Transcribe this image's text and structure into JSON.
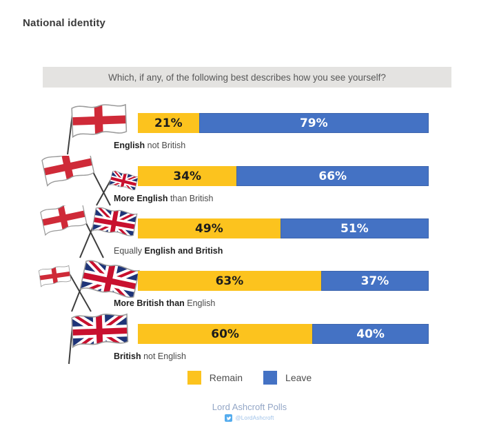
{
  "page": {
    "title": "National identity"
  },
  "question": {
    "text": "Which, if any, of the following best describes how you see yourself?"
  },
  "chart_data": {
    "type": "bar",
    "orientation": "horizontal-stacked",
    "title": "Which, if any, of the following best describes how you see yourself?",
    "xlim": [
      0,
      100
    ],
    "series_names": [
      "Remain",
      "Leave"
    ],
    "colors": {
      "remain": "#FCC31E",
      "leave": "#4472C4"
    },
    "rows": [
      {
        "icon": "england-flag",
        "label_pre": "",
        "label_bold": "English",
        "label_post": " not British",
        "remain_pct": 21,
        "leave_pct": 79,
        "remain_label": "21%",
        "leave_label": "79%"
      },
      {
        "icon": "large-england-flag-with-small-uk-flag",
        "label_pre": "",
        "label_bold": "More English",
        "label_post": " than British",
        "remain_pct": 34,
        "leave_pct": 66,
        "remain_label": "34%",
        "leave_label": "66%"
      },
      {
        "icon": "england-flag-and-uk-flag-crossed",
        "label_pre": "Equally ",
        "label_bold": "English and British",
        "label_post": "",
        "remain_pct": 49,
        "leave_pct": 51,
        "remain_label": "49%",
        "leave_label": "51%"
      },
      {
        "icon": "small-england-flag-with-large-uk-flag",
        "label_pre": "",
        "label_bold": "More British than",
        "label_post": " English",
        "remain_pct": 63,
        "leave_pct": 37,
        "remain_label": "63%",
        "leave_label": "37%"
      },
      {
        "icon": "uk-flag",
        "label_pre": "",
        "label_bold": "British",
        "label_post": " not English",
        "remain_pct": 60,
        "leave_pct": 40,
        "remain_label": "60%",
        "leave_label": "40%"
      }
    ]
  },
  "legend": {
    "items": [
      {
        "label": "Remain",
        "color": "#FCC31E"
      },
      {
        "label": "Leave",
        "color": "#4472C4"
      }
    ]
  },
  "footer": {
    "source": "Lord Ashcroft Polls",
    "twitter_icon": "twitter-bird-icon",
    "twitter_handle": "@LordAshcroft"
  }
}
